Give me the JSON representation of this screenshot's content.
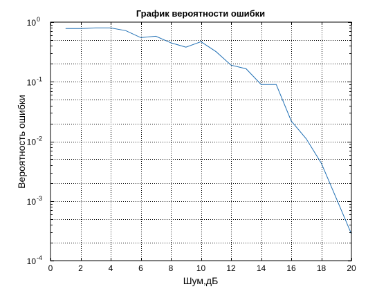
{
  "chart_data": {
    "type": "line",
    "title": "График вероятности ошибки",
    "xlabel": "Шум,дБ",
    "ylabel": "Вероятность ошибки",
    "xlim": [
      0,
      20
    ],
    "ylim": [
      0.0001,
      1
    ],
    "yscale": "log",
    "grid": true,
    "x_ticks": [
      0,
      2,
      4,
      6,
      8,
      10,
      12,
      14,
      16,
      18,
      20
    ],
    "x_tick_labels": [
      "0",
      "2",
      "4",
      "6",
      "8",
      "10",
      "12",
      "14",
      "16",
      "18",
      "20"
    ],
    "y_ticks": [
      1,
      0.1,
      0.01,
      0.001,
      0.0001
    ],
    "y_tick_labels": [
      {
        "base": "10",
        "exp": "0"
      },
      {
        "base": "10",
        "exp": "-1"
      },
      {
        "base": "10",
        "exp": "-2"
      },
      {
        "base": "10",
        "exp": "-3"
      },
      {
        "base": "10",
        "exp": "-4"
      }
    ],
    "series": [
      {
        "color": "#1f6fb4",
        "x": [
          1,
          2,
          3,
          4,
          5,
          6,
          7,
          8,
          9,
          10,
          11,
          12,
          13,
          14,
          15,
          16,
          17,
          18,
          19,
          20
        ],
        "y": [
          0.78,
          0.78,
          0.8,
          0.8,
          0.72,
          0.55,
          0.58,
          0.45,
          0.38,
          0.47,
          0.32,
          0.19,
          0.165,
          0.09,
          0.09,
          0.022,
          0.011,
          0.0043,
          0.0011,
          0.00028
        ]
      }
    ]
  }
}
